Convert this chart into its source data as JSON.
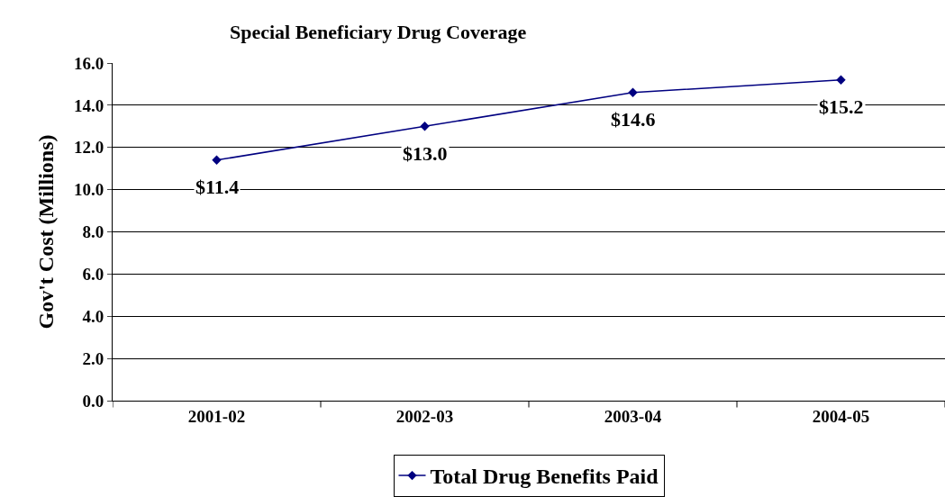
{
  "chart_data": {
    "type": "line",
    "title": "Special Beneficiary Drug Coverage",
    "ylabel": "Gov't Cost (Millions)",
    "categories": [
      "2001-02",
      "2002-03",
      "2003-04",
      "2004-05"
    ],
    "series": [
      {
        "name": "Total Drug Benefits Paid",
        "color": "#000080",
        "values": [
          11.4,
          13.0,
          14.6,
          15.2
        ],
        "value_labels": [
          "$11.4",
          "$13.0",
          "$14.6",
          "$15.2"
        ]
      }
    ],
    "ylim": [
      0,
      16
    ],
    "yticks": [
      {
        "value": 0,
        "label": "0.0"
      },
      {
        "value": 2,
        "label": "2.0"
      },
      {
        "value": 4,
        "label": "4.0"
      },
      {
        "value": 6,
        "label": "6.0"
      },
      {
        "value": 8,
        "label": "8.0"
      },
      {
        "value": 10,
        "label": "10.0"
      },
      {
        "value": 12,
        "label": "12.0"
      },
      {
        "value": 14,
        "label": "14.0"
      },
      {
        "value": 16,
        "label": "16.0"
      }
    ],
    "grid": "y",
    "legend": "bottom",
    "marker": "diamond",
    "line_style": "solid"
  }
}
